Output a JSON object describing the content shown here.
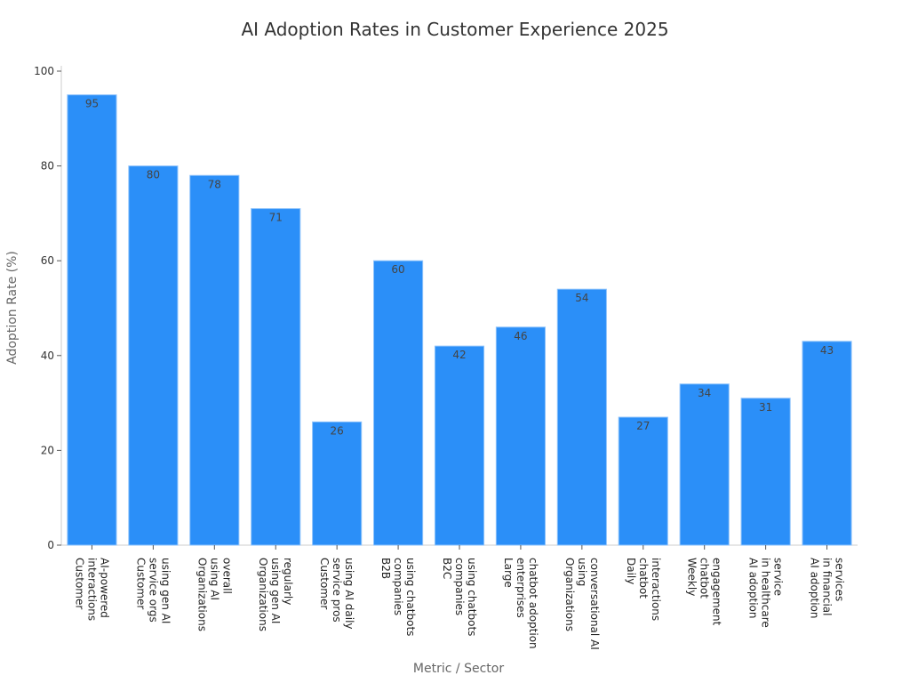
{
  "chart_data": {
    "type": "bar",
    "title": "AI Adoption Rates in Customer Experience 2025",
    "xlabel": "Metric / Sector",
    "ylabel": "Adoption Rate (%)",
    "ylim": [
      0,
      100
    ],
    "yticks": [
      0,
      20,
      40,
      60,
      80,
      100
    ],
    "grid": false,
    "bar_color": "#2b8ff8",
    "categories": [
      [
        "Customer",
        "interactions",
        "AI-powered"
      ],
      [
        "Customer",
        "service orgs",
        "using gen AI"
      ],
      [
        "Organizations",
        "using AI",
        "overall"
      ],
      [
        "Organizations",
        "using gen AI",
        "regularly"
      ],
      [
        "Customer",
        "service pros",
        "using AI daily"
      ],
      [
        "B2B",
        "companies",
        "using chatbots"
      ],
      [
        "B2C",
        "companies",
        "using chatbots"
      ],
      [
        "Large",
        "enterprises",
        "chatbot adoption"
      ],
      [
        "Organizations",
        "using",
        "conversational AI"
      ],
      [
        "Daily",
        "chatbot",
        "interactions"
      ],
      [
        "Weekly",
        "chatbot",
        "engagement"
      ],
      [
        "AI adoption",
        "in healthcare",
        "service"
      ],
      [
        "AI adoption",
        "in financial",
        "services"
      ]
    ],
    "values": [
      95,
      80,
      78,
      71,
      26,
      60,
      42,
      46,
      54,
      27,
      34,
      31,
      43
    ]
  }
}
